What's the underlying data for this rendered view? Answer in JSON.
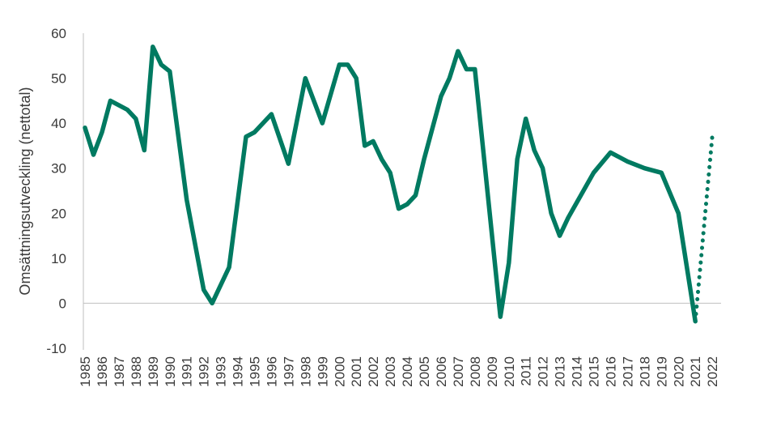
{
  "chart_data": {
    "type": "line",
    "title": "",
    "xlabel": "",
    "ylabel": "Omsättningsutveckling (nettotal)",
    "ylim": [
      -10,
      60
    ],
    "yticks": [
      -10,
      0,
      10,
      20,
      30,
      40,
      50,
      60
    ],
    "x": [
      "1985",
      "1986",
      "1987",
      "1988",
      "1989",
      "1990",
      "1991",
      "1992",
      "1993",
      "1994",
      "1995",
      "1996",
      "1997",
      "1998",
      "1999",
      "2000",
      "2001",
      "2002",
      "2003",
      "2004",
      "2005",
      "2006",
      "2007",
      "2008",
      "2009",
      "2010",
      "2011",
      "2012",
      "2013",
      "2014",
      "2015",
      "2016",
      "2017",
      "2018",
      "2019",
      "2020",
      "2021",
      "2022"
    ],
    "grid": false,
    "line_color": "#007a61",
    "series": [
      {
        "style": "solid",
        "points": [
          [
            0,
            39
          ],
          [
            0.5,
            33
          ],
          [
            1,
            38
          ],
          [
            1.5,
            45
          ],
          [
            2.5,
            43
          ],
          [
            3,
            41
          ],
          [
            3.5,
            34
          ],
          [
            4,
            57
          ],
          [
            4.5,
            53
          ],
          [
            5,
            51.5
          ],
          [
            6,
            23
          ],
          [
            7,
            3
          ],
          [
            7.5,
            0
          ],
          [
            8.5,
            8
          ],
          [
            9.5,
            37
          ],
          [
            10,
            38
          ],
          [
            11,
            42
          ],
          [
            12,
            31
          ],
          [
            13,
            50
          ],
          [
            14,
            40
          ],
          [
            15,
            53
          ],
          [
            15.5,
            53
          ],
          [
            16,
            50
          ],
          [
            16.5,
            35
          ],
          [
            17,
            36
          ],
          [
            17.5,
            32
          ],
          [
            18,
            29
          ],
          [
            18.5,
            21
          ],
          [
            19,
            22
          ],
          [
            19.5,
            24
          ],
          [
            20,
            32
          ],
          [
            21,
            46
          ],
          [
            21.5,
            50
          ],
          [
            22,
            56
          ],
          [
            22.5,
            52
          ],
          [
            23,
            52
          ],
          [
            24.5,
            -3
          ],
          [
            25,
            9
          ],
          [
            25.5,
            32
          ],
          [
            26,
            41
          ],
          [
            26.5,
            34
          ],
          [
            27,
            30
          ],
          [
            27.5,
            20
          ],
          [
            28,
            15
          ],
          [
            28.5,
            19
          ],
          [
            30,
            29
          ],
          [
            31,
            33.5
          ],
          [
            32,
            31.5
          ],
          [
            33,
            30
          ],
          [
            34,
            29
          ],
          [
            35,
            20
          ],
          [
            36,
            -4
          ]
        ]
      },
      {
        "style": "dotted",
        "points": [
          [
            36,
            -4
          ],
          [
            37,
            37
          ]
        ]
      }
    ]
  }
}
